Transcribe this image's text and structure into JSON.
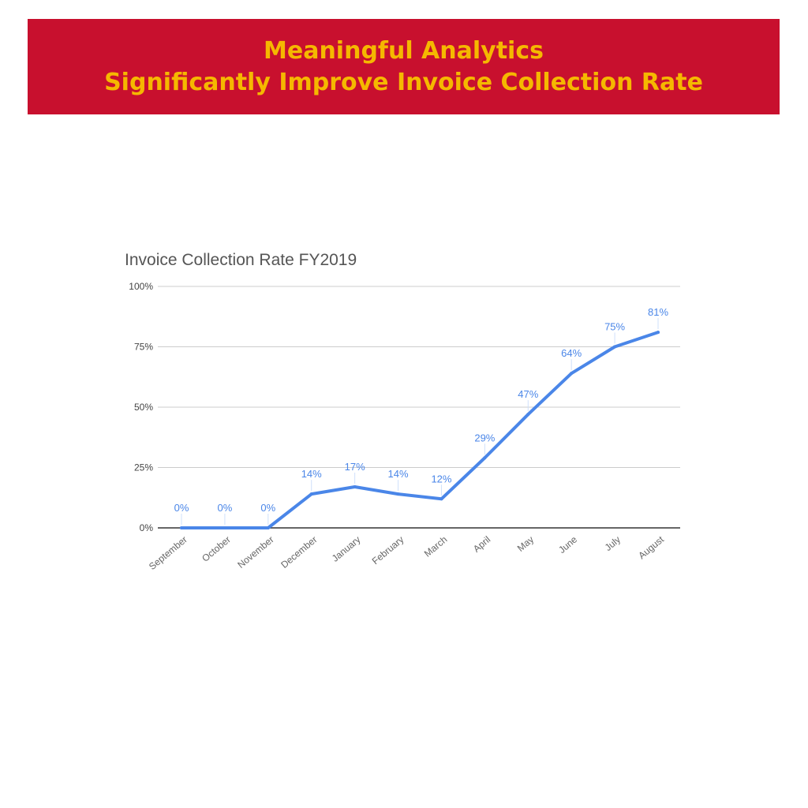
{
  "header": {
    "line1": "Meaningful Analytics",
    "line2": "Significantly Improve Invoice Collection Rate",
    "background_color": "#c8102e",
    "text_color": "#f5b800"
  },
  "chart_data": {
    "type": "line",
    "title": "Invoice Collection Rate FY2019",
    "xlabel": "",
    "ylabel": "",
    "categories": [
      "September",
      "October",
      "November",
      "December",
      "January",
      "February",
      "March",
      "April",
      "May",
      "June",
      "July",
      "August"
    ],
    "series": [
      {
        "values": [
          0,
          0,
          0,
          14,
          17,
          14,
          12,
          29,
          47,
          64,
          75,
          81
        ],
        "data_labels": [
          "0%",
          "0%",
          "0%",
          "14%",
          "17%",
          "14%",
          "12%",
          "29%",
          "47%",
          "64%",
          "75%",
          "81%"
        ],
        "color": "#4a86e8"
      }
    ],
    "ylim": [
      0,
      100
    ],
    "y_ticks": [
      0,
      25,
      50,
      75,
      100
    ],
    "y_tick_labels": [
      "0%",
      "25%",
      "50%",
      "75%",
      "100%"
    ],
    "grid": true,
    "legend": "none"
  }
}
